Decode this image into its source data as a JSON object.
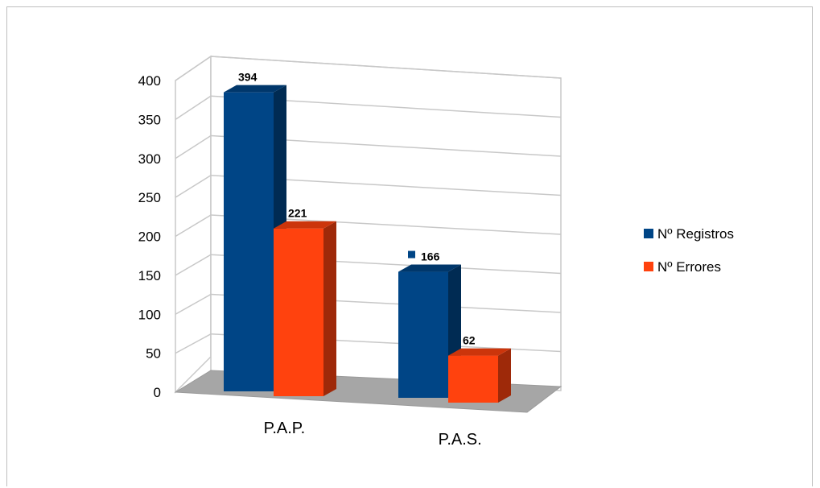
{
  "chart_data": {
    "type": "bar",
    "categories": [
      "P.A.P.",
      "P.A.S."
    ],
    "series": [
      {
        "name": "Nº Registros",
        "values": [
          394,
          166
        ],
        "color": "#004586"
      },
      {
        "name": "Nº Errores",
        "values": [
          221,
          62
        ],
        "color": "#ff420e"
      }
    ],
    "ylim": [
      0,
      400
    ],
    "yticks": [
      0,
      50,
      100,
      150,
      200,
      250,
      300,
      350,
      400
    ],
    "data_labels": [
      "394",
      "221",
      "166",
      "62"
    ],
    "grid": true,
    "legend_position": "right",
    "style": "3d-clustered-column"
  }
}
